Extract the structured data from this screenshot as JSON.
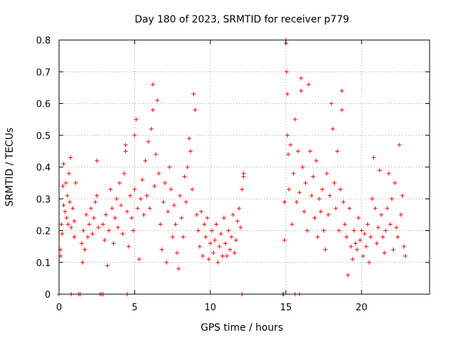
{
  "chart_data": {
    "type": "scatter",
    "title": "Day 180 of 2023, SRMTID for receiver p779",
    "xlabel": "GPS time / hours",
    "ylabel": "SRMTID / TECUs",
    "xlim": [
      0,
      24.5
    ],
    "ylim": [
      0,
      0.8
    ],
    "xticks": [
      0,
      5,
      10,
      15,
      20
    ],
    "yticks": [
      0,
      0.1,
      0.2,
      0.3,
      0.4,
      0.5,
      0.6,
      0.7,
      0.8
    ],
    "xtick_labels": [
      "0",
      "5",
      "10",
      "15",
      "20"
    ],
    "ytick_labels": [
      "0",
      "0.1",
      "0.2",
      "0.3",
      "0.4",
      "0.5",
      "0.6",
      "0.7",
      "0.8"
    ],
    "grid": true,
    "marker": "+",
    "color": "#ff0000",
    "series": [
      {
        "name": "SRMTID",
        "points": [
          [
            0.0,
            0.0
          ],
          [
            0.1,
            0.14
          ],
          [
            0.1,
            0.12
          ],
          [
            0.15,
            0.22
          ],
          [
            0.2,
            0.19
          ],
          [
            0.25,
            0.34
          ],
          [
            0.3,
            0.28
          ],
          [
            0.3,
            0.41
          ],
          [
            0.4,
            0.26
          ],
          [
            0.45,
            0.35
          ],
          [
            0.5,
            0.24
          ],
          [
            0.55,
            0.31
          ],
          [
            0.6,
            0.22
          ],
          [
            0.65,
            0.38
          ],
          [
            0.7,
            0.29
          ],
          [
            0.75,
            0.43
          ],
          [
            0.8,
            0.21
          ],
          [
            0.8,
            0.0
          ],
          [
            0.9,
            0.27
          ],
          [
            1.0,
            0.18
          ],
          [
            1.0,
            0.23
          ],
          [
            1.1,
            0.35
          ],
          [
            1.3,
            0.0
          ],
          [
            1.4,
            0.0
          ],
          [
            1.5,
            0.16
          ],
          [
            1.55,
            0.1
          ],
          [
            1.6,
            0.2
          ],
          [
            1.7,
            0.14
          ],
          [
            1.8,
            0.25
          ],
          [
            1.9,
            0.18
          ],
          [
            2.0,
            0.22
          ],
          [
            2.1,
            0.27
          ],
          [
            2.2,
            0.19
          ],
          [
            2.3,
            0.24
          ],
          [
            2.4,
            0.29
          ],
          [
            2.5,
            0.31
          ],
          [
            2.5,
            0.42
          ],
          [
            2.6,
            0.21
          ],
          [
            2.7,
            0.0
          ],
          [
            2.8,
            0.0
          ],
          [
            2.9,
            0.0
          ],
          [
            2.9,
            0.22
          ],
          [
            3.0,
            0.17
          ],
          [
            3.1,
            0.25
          ],
          [
            3.2,
            0.09
          ],
          [
            3.3,
            0.2
          ],
          [
            3.4,
            0.33
          ],
          [
            3.5,
            0.27
          ],
          [
            3.6,
            0.16
          ],
          [
            3.7,
            0.24
          ],
          [
            3.8,
            0.3
          ],
          [
            3.9,
            0.21
          ],
          [
            4.0,
            0.35
          ],
          [
            4.1,
            0.28
          ],
          [
            4.2,
            0.19
          ],
          [
            4.3,
            0.38
          ],
          [
            4.4,
            0.45
          ],
          [
            4.4,
            0.47
          ],
          [
            4.5,
            0.26
          ],
          [
            4.5,
            0.0
          ],
          [
            4.6,
            0.15
          ],
          [
            4.7,
            0.31
          ],
          [
            4.8,
            0.24
          ],
          [
            4.9,
            0.2
          ],
          [
            5.0,
            0.33
          ],
          [
            5.0,
            0.5
          ],
          [
            5.1,
            0.55
          ],
          [
            5.2,
            0.27
          ],
          [
            5.3,
            0.11
          ],
          [
            5.4,
            0.3
          ],
          [
            5.5,
            0.36
          ],
          [
            5.6,
            0.25
          ],
          [
            5.7,
            0.42
          ],
          [
            5.8,
            0.31
          ],
          [
            5.9,
            0.48
          ],
          [
            6.0,
            0.27
          ],
          [
            6.1,
            0.52
          ],
          [
            6.2,
            0.58
          ],
          [
            6.2,
            0.66
          ],
          [
            6.3,
            0.34
          ],
          [
            6.4,
            0.44
          ],
          [
            6.5,
            0.61
          ],
          [
            6.6,
            0.38
          ],
          [
            6.7,
            0.22
          ],
          [
            6.8,
            0.14
          ],
          [
            6.9,
            0.29
          ],
          [
            7.0,
            0.35
          ],
          [
            7.1,
            0.1
          ],
          [
            7.2,
            0.26
          ],
          [
            7.3,
            0.4
          ],
          [
            7.4,
            0.33
          ],
          [
            7.5,
            0.18
          ],
          [
            7.6,
            0.28
          ],
          [
            7.7,
            0.22
          ],
          [
            7.8,
            0.13
          ],
          [
            7.9,
            0.08
          ],
          [
            8.0,
            0.31
          ],
          [
            8.1,
            0.24
          ],
          [
            8.2,
            0.18
          ],
          [
            8.3,
            0.37
          ],
          [
            8.4,
            0.29
          ],
          [
            8.5,
            0.4
          ],
          [
            8.6,
            0.49
          ],
          [
            8.7,
            0.45
          ],
          [
            8.8,
            0.33
          ],
          [
            8.9,
            0.63
          ],
          [
            9.0,
            0.58
          ],
          [
            9.1,
            0.25
          ],
          [
            9.2,
            0.2
          ],
          [
            9.3,
            0.15
          ],
          [
            9.4,
            0.26
          ],
          [
            9.5,
            0.12
          ],
          [
            9.6,
            0.22
          ],
          [
            9.7,
            0.18
          ],
          [
            9.8,
            0.24
          ],
          [
            9.9,
            0.11
          ],
          [
            10.0,
            0.16
          ],
          [
            10.1,
            0.2
          ],
          [
            10.2,
            0.13
          ],
          [
            10.3,
            0.17
          ],
          [
            10.4,
            0.22
          ],
          [
            10.5,
            0.1
          ],
          [
            10.6,
            0.15
          ],
          [
            10.7,
            0.19
          ],
          [
            10.8,
            0.12
          ],
          [
            10.9,
            0.24
          ],
          [
            11.0,
            0.16
          ],
          [
            11.1,
            0.12
          ],
          [
            11.2,
            0.2
          ],
          [
            11.3,
            0.14
          ],
          [
            11.4,
            0.18
          ],
          [
            11.5,
            0.25
          ],
          [
            11.6,
            0.13
          ],
          [
            11.7,
            0.17
          ],
          [
            11.8,
            0.23
          ],
          [
            11.9,
            0.27
          ],
          [
            12.0,
            0.21
          ],
          [
            12.1,
            0.33
          ],
          [
            12.1,
            0.0
          ],
          [
            12.2,
            0.38
          ],
          [
            12.2,
            0.37
          ],
          [
            14.8,
            0.0
          ],
          [
            14.85,
            0.0
          ],
          [
            14.9,
            0.17
          ],
          [
            14.9,
            0.29
          ],
          [
            15.0,
            0.8
          ],
          [
            15.0,
            0.79
          ],
          [
            15.05,
            0.7
          ],
          [
            15.1,
            0.63
          ],
          [
            15.1,
            0.5
          ],
          [
            15.15,
            0.44
          ],
          [
            15.2,
            0.33
          ],
          [
            15.3,
            0.47
          ],
          [
            15.4,
            0.22
          ],
          [
            15.5,
            0.38
          ],
          [
            15.6,
            0.55
          ],
          [
            15.6,
            0.0
          ],
          [
            15.7,
            0.29
          ],
          [
            15.8,
            0.45
          ],
          [
            15.9,
            0.0
          ],
          [
            15.9,
            0.32
          ],
          [
            16.0,
            0.68
          ],
          [
            16.0,
            0.64
          ],
          [
            16.1,
            0.4
          ],
          [
            16.2,
            0.26
          ],
          [
            16.3,
            0.35
          ],
          [
            16.4,
            0.2
          ],
          [
            16.5,
            0.66
          ],
          [
            16.6,
            0.45
          ],
          [
            16.7,
            0.31
          ],
          [
            16.8,
            0.37
          ],
          [
            16.9,
            0.24
          ],
          [
            17.0,
            0.42
          ],
          [
            17.1,
            0.18
          ],
          [
            17.2,
            0.3
          ],
          [
            17.3,
            0.26
          ],
          [
            17.4,
            0.33
          ],
          [
            17.5,
            0.2
          ],
          [
            17.6,
            0.14
          ],
          [
            17.7,
            0.38
          ],
          [
            17.8,
            0.25
          ],
          [
            17.9,
            0.31
          ],
          [
            18.0,
            0.6
          ],
          [
            18.1,
            0.52
          ],
          [
            18.2,
            0.35
          ],
          [
            18.3,
            0.27
          ],
          [
            18.4,
            0.45
          ],
          [
            18.5,
            0.2
          ],
          [
            18.6,
            0.33
          ],
          [
            18.7,
            0.64
          ],
          [
            18.7,
            0.58
          ],
          [
            18.8,
            0.29
          ],
          [
            18.9,
            0.22
          ],
          [
            19.0,
            0.18
          ],
          [
            19.1,
            0.06
          ],
          [
            19.2,
            0.27
          ],
          [
            19.3,
            0.15
          ],
          [
            19.4,
            0.11
          ],
          [
            19.5,
            0.2
          ],
          [
            19.6,
            0.16
          ],
          [
            19.7,
            0.14
          ],
          [
            19.8,
            0.24
          ],
          [
            19.9,
            0.17
          ],
          [
            20.0,
            0.2
          ],
          [
            20.1,
            0.12
          ],
          [
            20.2,
            0.19
          ],
          [
            20.3,
            0.15
          ],
          [
            20.4,
            0.22
          ],
          [
            20.5,
            0.1
          ],
          [
            20.6,
            0.18
          ],
          [
            20.7,
            0.3
          ],
          [
            20.8,
            0.43
          ],
          [
            20.9,
            0.27
          ],
          [
            21.0,
            0.16
          ],
          [
            21.1,
            0.21
          ],
          [
            21.2,
            0.39
          ],
          [
            21.3,
            0.25
          ],
          [
            21.4,
            0.18
          ],
          [
            21.5,
            0.13
          ],
          [
            21.6,
            0.2
          ],
          [
            21.7,
            0.27
          ],
          [
            21.8,
            0.38
          ],
          [
            21.9,
            0.22
          ],
          [
            22.0,
            0.3
          ],
          [
            22.1,
            0.14
          ],
          [
            22.2,
            0.35
          ],
          [
            22.3,
            0.21
          ],
          [
            22.4,
            0.18
          ],
          [
            22.5,
            0.47
          ],
          [
            22.6,
            0.25
          ],
          [
            22.7,
            0.31
          ],
          [
            22.8,
            0.15
          ],
          [
            22.9,
            0.12
          ]
        ]
      }
    ]
  }
}
